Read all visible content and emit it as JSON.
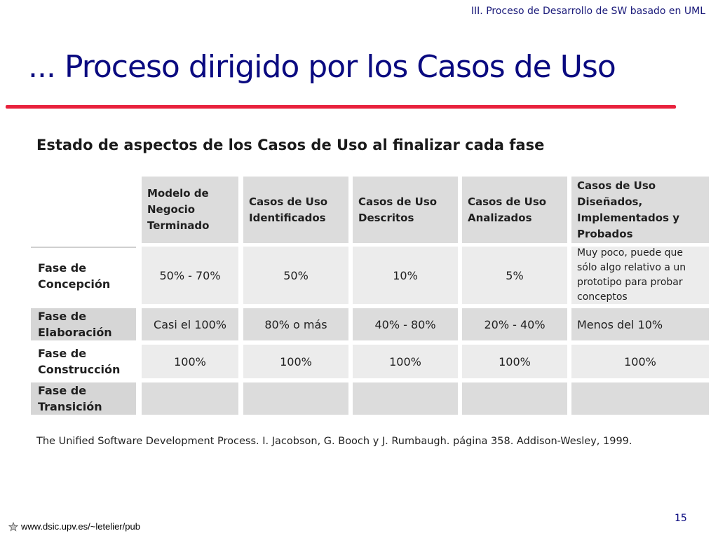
{
  "slide": {
    "header_caption": "III. Proceso de Desarrollo de SW basado en  UML",
    "title": "... Proceso dirigido por los Casos de Uso",
    "table_heading": "Estado de aspectos de los Casos de Uso al finalizar cada fase",
    "citation": "The Unified Software Development Process. I. Jacobson, G. Booch y J. Rumbaugh. página 358. Addison-Wesley, 1999.",
    "page_number": "15",
    "footer_url": "www.dsic.upv.es/~letelier/pub",
    "accent_color": "#e8213c",
    "title_color": "#0a0a80"
  },
  "table": {
    "columns": [
      [
        "Modelo de",
        "Negocio",
        "Terminado"
      ],
      [
        "Casos de Uso",
        "Identificados"
      ],
      [
        "Casos de Uso",
        "Descritos"
      ],
      [
        "Casos de Uso",
        "Analizados"
      ],
      [
        "Casos de Uso",
        "Diseñados,",
        "Implementados y",
        "Probados"
      ]
    ],
    "rows": [
      {
        "label": [
          "Fase de",
          "Concepción"
        ],
        "values": [
          "50% - 70%",
          "50%",
          "10%",
          "5%"
        ],
        "note": [
          "Muy poco, puede que",
          "sólo algo relativo a un",
          "prototipo para probar",
          "conceptos"
        ]
      },
      {
        "label": [
          "Fase de",
          "Elaboración"
        ],
        "values": [
          "Casi el 100%",
          "80% o más",
          "40% - 80%",
          "20% - 40%",
          "Menos del 10%"
        ]
      },
      {
        "label": [
          "Fase de",
          "Construcción"
        ],
        "values": [
          "100%",
          "100%",
          "100%",
          "100%",
          "100%"
        ]
      },
      {
        "label": [
          "Fase de",
          "Transición"
        ],
        "values": [
          "",
          "",
          "",
          "",
          ""
        ]
      }
    ]
  }
}
